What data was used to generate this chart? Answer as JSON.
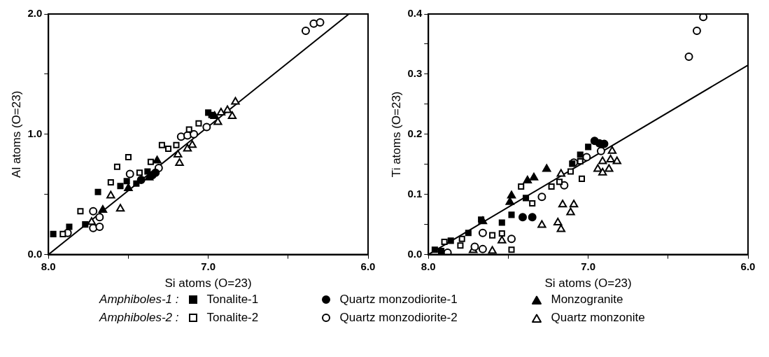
{
  "chart_data": [
    {
      "type": "scatter",
      "xlabel": "Si atoms (O=23)",
      "ylabel": "Al atoms (O=23)",
      "xlim": [
        8.0,
        6.0
      ],
      "ylim": [
        0.0,
        2.0
      ],
      "xticks": [
        {
          "value": 8.0,
          "label": "8.0"
        },
        {
          "value": 7.5,
          "label": null
        },
        {
          "value": 7.0,
          "label": "7.0"
        },
        {
          "value": 6.5,
          "label": null
        },
        {
          "value": 6.0,
          "label": "6.0"
        }
      ],
      "yticks": [
        {
          "value": 0.0,
          "label": "0.0"
        },
        {
          "value": 0.5,
          "label": null
        },
        {
          "value": 1.0,
          "label": "1.0"
        },
        {
          "value": 1.5,
          "label": null
        },
        {
          "value": 2.0,
          "label": "2.0"
        }
      ],
      "grid": false,
      "legend": "bottom",
      "annotations": [
        "Amphiboles-1 :",
        "Amphiboles-2 :"
      ],
      "series": [
        {
          "name": "Tonalite-1",
          "color": "#000000",
          "marker": "square",
          "x": [
            7.97,
            7.87,
            7.77,
            7.69,
            7.55,
            7.51,
            7.45,
            7.38,
            7.0,
            6.98
          ],
          "values": [
            0.17,
            0.23,
            0.25,
            0.52,
            0.57,
            0.61,
            0.59,
            0.69,
            1.18,
            1.16
          ]
        },
        {
          "name": "Quartz monzodiorite-1",
          "color": "#000000",
          "marker": "circle",
          "x": [
            7.33,
            7.35,
            7.42
          ],
          "values": [
            0.68,
            0.66,
            0.62
          ]
        },
        {
          "name": "Monzogranite",
          "color": "#000000",
          "marker": "triangle",
          "x": [
            7.66,
            7.5,
            7.37,
            7.32,
            6.96
          ],
          "values": [
            0.37,
            0.55,
            0.64,
            0.78,
            1.15
          ]
        },
        {
          "name": "Tonalite-2",
          "color": "#000000",
          "marker": "square",
          "x": [
            7.91,
            7.8,
            7.61,
            7.57,
            7.5,
            7.43,
            7.36,
            7.29,
            7.25,
            7.2,
            7.12,
            7.06
          ],
          "values": [
            0.17,
            0.36,
            0.6,
            0.73,
            0.81,
            0.68,
            0.77,
            0.91,
            0.88,
            0.91,
            1.04,
            1.09
          ]
        },
        {
          "name": "Quartz monzodiorite-2",
          "color": "#000000",
          "marker": "circle",
          "x": [
            7.88,
            7.72,
            7.72,
            7.68,
            7.68,
            7.49,
            7.31,
            7.17,
            7.13,
            7.09,
            7.01,
            6.39,
            6.34,
            6.3
          ],
          "values": [
            0.18,
            0.36,
            0.22,
            0.23,
            0.31,
            0.67,
            0.72,
            0.98,
            0.99,
            1.0,
            1.06,
            1.86,
            1.92,
            1.93
          ]
        },
        {
          "name": "Quartz monzonite",
          "color": "#000000",
          "marker": "triangle",
          "x": [
            7.61,
            7.55,
            7.73,
            7.19,
            7.18,
            7.13,
            7.1,
            6.94,
            6.88,
            6.85,
            6.83,
            6.92
          ],
          "values": [
            0.49,
            0.38,
            0.27,
            0.83,
            0.76,
            0.88,
            0.91,
            1.1,
            1.2,
            1.15,
            1.27,
            1.18
          ]
        },
        {
          "type": "line",
          "color": "#000000",
          "marker": "none",
          "x": [
            8.0,
            6.12
          ],
          "values": [
            0.0,
            2.0
          ]
        }
      ]
    },
    {
      "type": "scatter",
      "xlabel": "Si atoms (O=23)",
      "ylabel": "Ti atoms (O=23)",
      "xlim": [
        8.0,
        6.0
      ],
      "ylim": [
        0.0,
        0.4
      ],
      "xticks": [
        {
          "value": 8.0,
          "label": "8.0"
        },
        {
          "value": 7.5,
          "label": null
        },
        {
          "value": 7.0,
          "label": "7.0"
        },
        {
          "value": 6.5,
          "label": null
        },
        {
          "value": 6.0,
          "label": "6.0"
        }
      ],
      "yticks": [
        {
          "value": 0.0,
          "label": "0.0"
        },
        {
          "value": 0.05,
          "label": null
        },
        {
          "value": 0.1,
          "label": "0.1"
        },
        {
          "value": 0.15,
          "label": null
        },
        {
          "value": 0.2,
          "label": "0.2"
        },
        {
          "value": 0.25,
          "label": null
        },
        {
          "value": 0.3,
          "label": "0.3"
        },
        {
          "value": 0.35,
          "label": null
        },
        {
          "value": 0.4,
          "label": "0.4"
        }
      ],
      "grid": false,
      "series": [
        {
          "color": "#000000",
          "marker": "square",
          "x": [
            7.96,
            7.92,
            7.86,
            7.75,
            7.67,
            7.54,
            7.48,
            7.39,
            7.1,
            7.05,
            7.0
          ],
          "values": [
            0.008,
            0.006,
            0.023,
            0.036,
            0.058,
            0.053,
            0.066,
            0.094,
            0.151,
            0.166,
            0.179
          ]
        },
        {
          "color": "#000000",
          "marker": "circle",
          "x": [
            7.41,
            7.35,
            6.96,
            6.93,
            6.9
          ],
          "values": [
            0.062,
            0.062,
            0.189,
            0.185,
            0.184
          ]
        },
        {
          "color": "#000000",
          "marker": "triangle",
          "x": [
            7.66,
            7.49,
            7.48,
            7.38,
            7.34,
            7.26
          ],
          "values": [
            0.055,
            0.087,
            0.098,
            0.123,
            0.128,
            0.142
          ]
        },
        {
          "color": "#000000",
          "marker": "square",
          "x": [
            7.9,
            7.79,
            7.8,
            7.6,
            7.54,
            7.48,
            7.42,
            7.35,
            7.23,
            7.18,
            7.11,
            7.04,
            7.05
          ],
          "values": [
            0.021,
            0.026,
            0.015,
            0.032,
            0.035,
            0.008,
            0.113,
            0.085,
            0.113,
            0.121,
            0.138,
            0.126,
            0.155
          ]
        },
        {
          "color": "#000000",
          "marker": "circle",
          "x": [
            7.88,
            7.71,
            7.66,
            7.66,
            7.48,
            7.29,
            7.15,
            7.09,
            7.01,
            6.92,
            6.37,
            6.32,
            6.28
          ],
          "values": [
            0.003,
            0.013,
            0.009,
            0.036,
            0.026,
            0.096,
            0.115,
            0.153,
            0.162,
            0.172,
            0.329,
            0.372,
            0.395
          ]
        },
        {
          "color": "#000000",
          "marker": "triangle",
          "x": [
            7.72,
            7.6,
            7.54,
            7.29,
            7.19,
            7.17,
            7.16,
            7.11,
            7.09,
            7.17,
            6.94,
            6.91,
            6.91,
            6.87,
            6.85,
            6.82,
            6.86
          ],
          "values": [
            0.007,
            0.006,
            0.023,
            0.049,
            0.053,
            0.042,
            0.083,
            0.07,
            0.083,
            0.134,
            0.142,
            0.136,
            0.155,
            0.142,
            0.172,
            0.155,
            0.158
          ]
        },
        {
          "type": "line",
          "color": "#000000",
          "marker": "none",
          "x": [
            8.0,
            6.0
          ],
          "values": [
            0.0,
            0.315
          ]
        }
      ]
    }
  ]
}
